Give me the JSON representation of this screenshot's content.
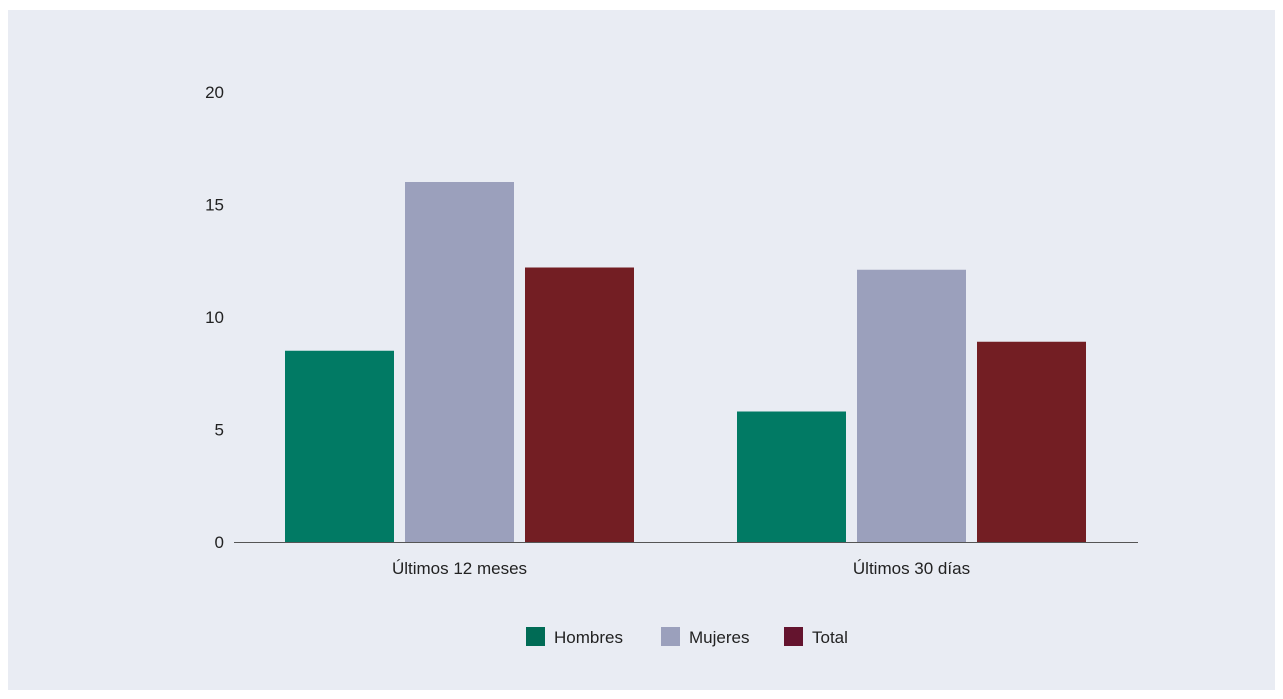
{
  "chart_data": {
    "type": "bar",
    "categories": [
      "Últimos 12 meses",
      "Últimos 30 días"
    ],
    "series": [
      {
        "name": "Hombres",
        "values": [
          8.5,
          5.8
        ],
        "color": "#017a64"
      },
      {
        "name": "Mujeres",
        "values": [
          16.0,
          12.1
        ],
        "color": "#9ba0bc"
      },
      {
        "name": "Total",
        "values": [
          12.2,
          8.9
        ],
        "color": "#731e23"
      }
    ],
    "title": "",
    "xlabel": "",
    "ylabel": "",
    "ylim": [
      0,
      20
    ],
    "yticks": [
      "0",
      "5",
      "10",
      "15",
      "20"
    ],
    "grid": false,
    "legend_position": "bottom-center"
  },
  "style": {
    "background": "#e9ecf3",
    "axis_color": "#555555",
    "legend_swatch_colors": [
      "#006b55",
      "#9ba0bc",
      "#64142e"
    ]
  }
}
